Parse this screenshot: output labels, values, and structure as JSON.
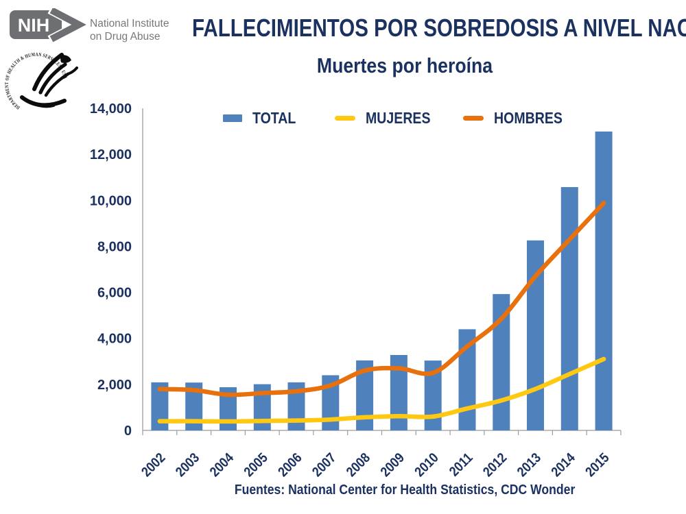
{
  "header": {
    "nih_logo": {
      "acronym": "NIH",
      "institute_line1": "National Institute",
      "institute_line2": "on Drug Abuse"
    },
    "hhs_seal_text": "DEPARTMENT OF HEALTH & HUMAN SERVICES · USA",
    "title": "FALLECIMIENTOS POR SOBREDOSIS A NIVEL NACIONAL",
    "subtitle": "Muertes por heroína"
  },
  "footer": {
    "source": "Fuentes: National Center for Health Statistics, CDC Wonder"
  },
  "colors": {
    "navy": "#1b3160",
    "bar_blue": "#4f81bd",
    "line_yellow": "#ffc913",
    "line_orange": "#e8700d",
    "axis_gray": "#9b9b9b",
    "logo_gray": "#6e6f72"
  },
  "chart_data": {
    "type": "bar",
    "subtype": "combo bar+line",
    "title": "FALLECIMIENTOS POR SOBREDOSIS A NIVEL NACIONAL",
    "subtitle": "Muertes por heroína",
    "categories": [
      "2002",
      "2003",
      "2004",
      "2005",
      "2006",
      "2007",
      "2008",
      "2009",
      "2010",
      "2011",
      "2012",
      "2013",
      "2014",
      "2015"
    ],
    "series": [
      {
        "name": "TOTAL",
        "type": "bar",
        "color": "#4f81bd",
        "values": [
          2089,
          2080,
          1878,
          2009,
          2088,
          2399,
          3041,
          3278,
          3036,
          4397,
          5925,
          8257,
          10574,
          12989
        ]
      },
      {
        "name": "MUJERES",
        "type": "line",
        "color": "#ffc913",
        "values": [
          400,
          400,
          390,
          410,
          430,
          470,
          570,
          620,
          600,
          950,
          1300,
          1800,
          2450,
          3100
        ]
      },
      {
        "name": "HOMBRES",
        "type": "line",
        "color": "#e8700d",
        "values": [
          1800,
          1750,
          1550,
          1620,
          1700,
          1950,
          2600,
          2700,
          2500,
          3650,
          4850,
          6700,
          8300,
          9880
        ]
      }
    ],
    "xlabel": "",
    "ylabel": "",
    "ylim": [
      0,
      14000
    ],
    "y_ticks": [
      0,
      2000,
      4000,
      6000,
      8000,
      10000,
      12000,
      14000
    ],
    "y_tick_labels": [
      "0",
      "2,000",
      "4,000",
      "6,000",
      "8,000",
      "10,000",
      "12,000",
      "14,000"
    ],
    "grid": false,
    "legend_position": "top"
  }
}
